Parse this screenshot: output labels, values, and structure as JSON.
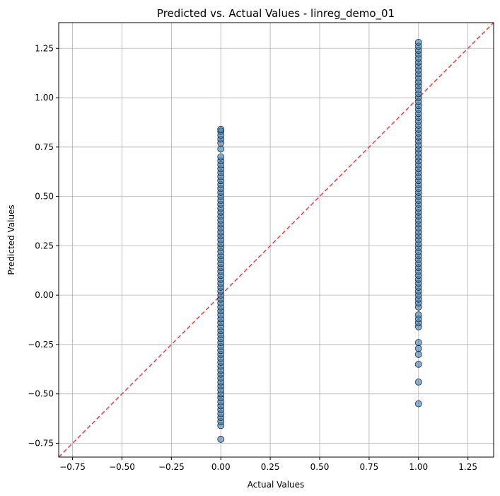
{
  "chart_data": {
    "type": "scatter",
    "title": "Predicted vs. Actual Values - linreg_demo_01",
    "xlabel": "Actual Values",
    "ylabel": "Predicted Values",
    "xlim": [
      -0.82,
      1.38
    ],
    "ylim": [
      -0.82,
      1.38
    ],
    "x_ticks": [
      -0.75,
      -0.5,
      -0.25,
      0.0,
      0.25,
      0.5,
      0.75,
      1.0,
      1.25
    ],
    "y_ticks": [
      -0.75,
      -0.5,
      -0.25,
      0.0,
      0.25,
      0.5,
      0.75,
      1.0,
      1.25
    ],
    "x_tick_labels": [
      "−0.75",
      "−0.50",
      "−0.25",
      "0.00",
      "0.25",
      "0.50",
      "0.75",
      "1.00",
      "1.25"
    ],
    "y_tick_labels": [
      "−0.75",
      "−0.50",
      "−0.25",
      "0.00",
      "0.25",
      "0.50",
      "0.75",
      "1.00",
      "1.25"
    ],
    "grid": true,
    "reference_line": {
      "kind": "y=x",
      "style": "dashed",
      "color": "#e8403d"
    },
    "point_color": "#3b7fb8",
    "point_edge_color": "#1a1a1a",
    "series": [
      {
        "x_value": 0,
        "y_values": [
          -0.73,
          -0.66,
          -0.64,
          -0.62,
          -0.6,
          -0.58,
          -0.56,
          -0.54,
          -0.52,
          -0.5,
          -0.48,
          -0.46,
          -0.44,
          -0.42,
          -0.4,
          -0.38,
          -0.36,
          -0.34,
          -0.32,
          -0.3,
          -0.28,
          -0.26,
          -0.24,
          -0.22,
          -0.2,
          -0.18,
          -0.16,
          -0.14,
          -0.12,
          -0.1,
          -0.08,
          -0.06,
          -0.04,
          -0.02,
          0.0,
          0.02,
          0.04,
          0.06,
          0.08,
          0.1,
          0.12,
          0.14,
          0.16,
          0.18,
          0.2,
          0.22,
          0.24,
          0.26,
          0.28,
          0.3,
          0.32,
          0.34,
          0.36,
          0.38,
          0.4,
          0.42,
          0.44,
          0.46,
          0.48,
          0.5,
          0.52,
          0.54,
          0.56,
          0.58,
          0.6,
          0.62,
          0.64,
          0.66,
          0.68,
          0.7,
          0.74,
          0.77,
          0.79,
          0.81,
          0.83,
          0.84
        ]
      },
      {
        "x_value": 1,
        "y_values": [
          -0.55,
          -0.44,
          -0.35,
          -0.3,
          -0.27,
          -0.24,
          -0.16,
          -0.14,
          -0.12,
          -0.1,
          -0.06,
          -0.04,
          -0.02,
          0.0,
          0.02,
          0.04,
          0.06,
          0.08,
          0.1,
          0.12,
          0.14,
          0.16,
          0.18,
          0.2,
          0.22,
          0.24,
          0.26,
          0.28,
          0.3,
          0.32,
          0.34,
          0.36,
          0.38,
          0.4,
          0.42,
          0.44,
          0.46,
          0.48,
          0.5,
          0.52,
          0.54,
          0.56,
          0.58,
          0.6,
          0.62,
          0.64,
          0.66,
          0.68,
          0.7,
          0.72,
          0.74,
          0.76,
          0.78,
          0.8,
          0.82,
          0.84,
          0.86,
          0.88,
          0.9,
          0.92,
          0.94,
          0.96,
          0.98,
          1.0,
          1.02,
          1.04,
          1.06,
          1.08,
          1.1,
          1.12,
          1.14,
          1.16,
          1.18,
          1.2,
          1.22,
          1.24,
          1.26,
          1.28
        ]
      }
    ]
  }
}
